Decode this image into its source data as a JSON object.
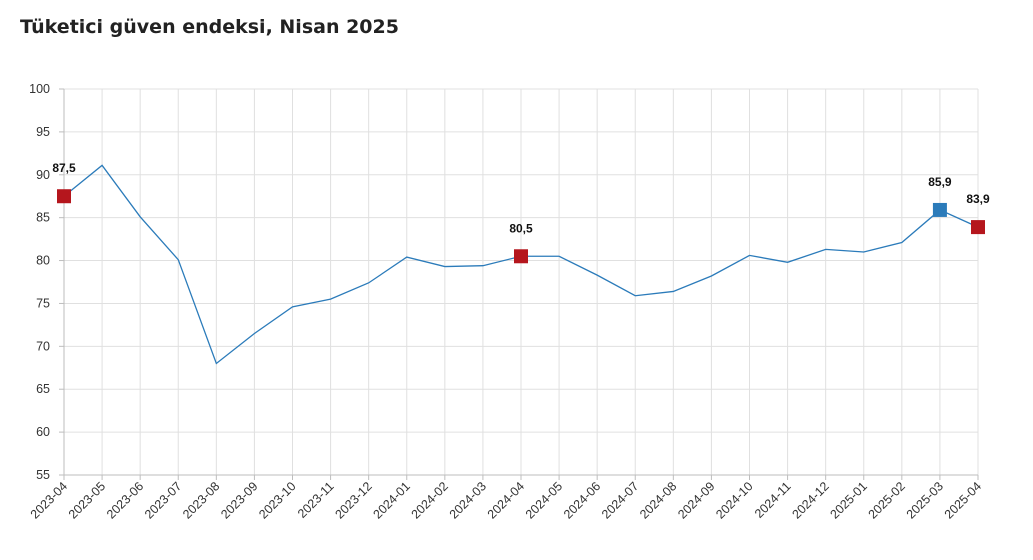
{
  "chart_data": {
    "type": "line",
    "title": "Tüketici güven endeksi, Nisan 2025",
    "xlabel": "",
    "ylabel": "",
    "ylim": [
      55,
      100
    ],
    "yticks": [
      55,
      60,
      65,
      70,
      75,
      80,
      85,
      90,
      95,
      100
    ],
    "grid": true,
    "categories": [
      "2023-04",
      "2023-05",
      "2023-06",
      "2023-07",
      "2023-08",
      "2023-09",
      "2023-10",
      "2023-11",
      "2023-12",
      "2024-01",
      "2024-02",
      "2024-03",
      "2024-04",
      "2024-05",
      "2024-06",
      "2024-07",
      "2024-08",
      "2024-09",
      "2024-10",
      "2024-11",
      "2024-12",
      "2025-01",
      "2025-02",
      "2025-03",
      "2025-04"
    ],
    "series": [
      {
        "values": [
          87.5,
          91.1,
          85.1,
          80.1,
          68.0,
          71.5,
          74.6,
          75.5,
          77.4,
          80.4,
          79.3,
          79.4,
          80.5,
          80.5,
          78.3,
          75.9,
          76.4,
          78.2,
          80.6,
          79.8,
          81.3,
          81.0,
          82.1,
          85.9,
          83.9
        ],
        "color": "#2b7bba"
      }
    ],
    "markers": [
      {
        "index": 0,
        "label": "87,5",
        "color": "#b5161d"
      },
      {
        "index": 12,
        "label": "80,5",
        "color": "#b5161d"
      },
      {
        "index": 23,
        "label": "85,9",
        "color": "#2b7bba"
      },
      {
        "index": 24,
        "label": "83,9",
        "color": "#b5161d"
      }
    ]
  }
}
